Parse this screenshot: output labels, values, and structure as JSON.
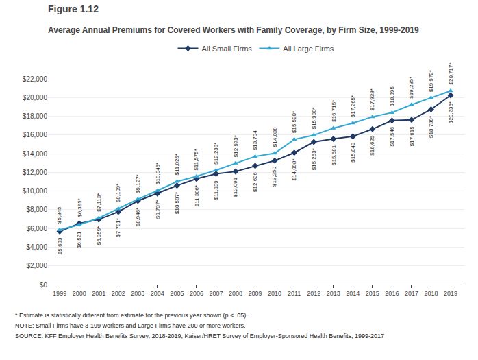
{
  "chart_data": {
    "type": "line",
    "title": "Figure 1.12",
    "subtitle": "Average Annual Premiums for Covered Workers with Family Coverage, by Firm Size, 1999-2019",
    "x": [
      1999,
      2000,
      2001,
      2002,
      2003,
      2004,
      2005,
      2006,
      2007,
      2008,
      2009,
      2010,
      2011,
      2012,
      2013,
      2014,
      2015,
      2016,
      2017,
      2018,
      2019
    ],
    "series": [
      {
        "name": "All Small Firms",
        "color": "#1f3864",
        "marker": "diamond",
        "values": [
          5683,
          6521,
          6959,
          7781,
          8946,
          9737,
          10587,
          11306,
          11839,
          12091,
          12696,
          13250,
          14098,
          15253,
          15581,
          15849,
          16625,
          17546,
          17615,
          18739,
          20236
        ],
        "value_labels": [
          "$5,683",
          "$6,521",
          "$6,959*",
          "$7,781*",
          "$8,946*",
          "$9,737*",
          "$10,587*",
          "$11,306*",
          "$11,839",
          "$12,091",
          "$12,696",
          "$13,250",
          "$14,098*",
          "$15,253*",
          "$15,581",
          "$15,849",
          "$16,625",
          "$17,546",
          "$17,615",
          "$18,739*",
          "$20,236*"
        ]
      },
      {
        "name": "All Large Firms",
        "color": "#31a9d4",
        "marker": "triangle-up",
        "values": [
          5845,
          6395,
          7113,
          8109,
          9127,
          10046,
          11025,
          11575,
          12233,
          12973,
          13704,
          14038,
          15520,
          15980,
          16715,
          17265,
          17938,
          18395,
          19235,
          19972,
          20717
        ],
        "value_labels": [
          "$5,845",
          "$6,395*",
          "$7,113*",
          "$8,109*",
          "$9,127*",
          "$10,046*",
          "$11,025*",
          "$11,575*",
          "$12,233*",
          "$12,973*",
          "$13,704",
          "$14,038",
          "$15,520*",
          "$15,980*",
          "$16,715*",
          "$17,265*",
          "$17,938*",
          "$18,395",
          "$19,235*",
          "$19,972*",
          "$20,717*"
        ]
      }
    ],
    "xlim": [
      1998.4,
      2019.7
    ],
    "xticks": [
      1999,
      2000,
      2001,
      2002,
      2003,
      2004,
      2005,
      2006,
      2007,
      2008,
      2009,
      2010,
      2011,
      2012,
      2013,
      2014,
      2015,
      2016,
      2017,
      2018,
      2019
    ],
    "ylim": [
      0,
      22000
    ],
    "yticks": [
      {
        "value": 0,
        "label": "$0"
      },
      {
        "value": 2000,
        "label": "$2,000"
      },
      {
        "value": 4000,
        "label": "$4,000"
      },
      {
        "value": 6000,
        "label": "$6,000"
      },
      {
        "value": 8000,
        "label": "$8,000"
      },
      {
        "value": 10000,
        "label": "$10,000"
      },
      {
        "value": 12000,
        "label": "$12,000"
      },
      {
        "value": 14000,
        "label": "$14,000"
      },
      {
        "value": 16000,
        "label": "$16,000"
      },
      {
        "value": 18000,
        "label": "$18,000"
      },
      {
        "value": 20000,
        "label": "$20,000"
      },
      {
        "value": 22000,
        "label": "$22,000"
      }
    ],
    "grid": "y",
    "legend": "top",
    "data_labels": true,
    "annotations": [
      "* Estimate is statistically different from estimate for the previous year shown (p < .05).",
      "NOTE: Small Firms have 3-199 workers and Large Firms have 200 or more workers.",
      "SOURCE: KFF Employer Health Benefits Survey, 2018-2019; Kaiser/HRET Survey of Employer-Sponsored Health Benefits, 1999-2017"
    ]
  }
}
